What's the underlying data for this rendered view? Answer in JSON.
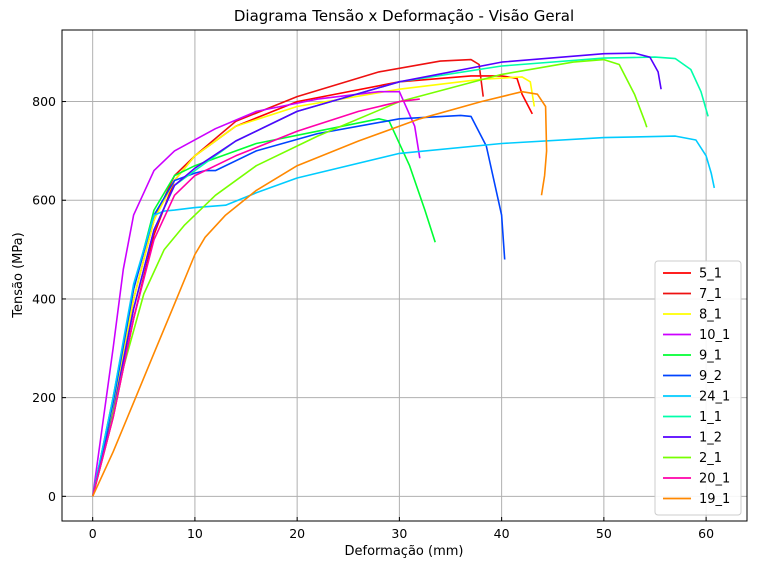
{
  "chart_data": {
    "type": "line",
    "title": "Diagrama Tensão x Deformação - Visão Geral",
    "xlabel": "Deformação (mm)",
    "ylabel": "Tensão (MPa)",
    "xlim": [
      -3,
      64
    ],
    "ylim": [
      -50,
      945
    ],
    "xticks": [
      0,
      10,
      20,
      30,
      40,
      50,
      60
    ],
    "yticks": [
      0,
      200,
      400,
      600,
      800
    ],
    "grid": true,
    "legend_position": "lower-right",
    "series": [
      {
        "name": "5_1",
        "color": "#ff0000",
        "points": [
          [
            0,
            0
          ],
          [
            2,
            160
          ],
          [
            4,
            360
          ],
          [
            6,
            530
          ],
          [
            8,
            640
          ],
          [
            10,
            690
          ],
          [
            14,
            750
          ],
          [
            20,
            800
          ],
          [
            30,
            840
          ],
          [
            37,
            852
          ],
          [
            40,
            852
          ],
          [
            41.5,
            847
          ],
          [
            42,
            815
          ],
          [
            43,
            775
          ]
        ]
      },
      {
        "name": "7_1",
        "color": "#ee1010",
        "points": [
          [
            0,
            0
          ],
          [
            2,
            180
          ],
          [
            4,
            400
          ],
          [
            6,
            560
          ],
          [
            8,
            650
          ],
          [
            10,
            690
          ],
          [
            14,
            760
          ],
          [
            20,
            810
          ],
          [
            28,
            860
          ],
          [
            34,
            882
          ],
          [
            37,
            885
          ],
          [
            37.8,
            875
          ],
          [
            38.2,
            810
          ]
        ]
      },
      {
        "name": "8_1",
        "color": "#ffff00",
        "points": [
          [
            0,
            0
          ],
          [
            2,
            180
          ],
          [
            4,
            400
          ],
          [
            6,
            560
          ],
          [
            8,
            640
          ],
          [
            10,
            690
          ],
          [
            14,
            750
          ],
          [
            20,
            790
          ],
          [
            30,
            825
          ],
          [
            38,
            845
          ],
          [
            42,
            850
          ],
          [
            42.8,
            840
          ],
          [
            43.2,
            790
          ]
        ]
      },
      {
        "name": "10_1",
        "color": "#cc00ff",
        "points": [
          [
            0,
            0
          ],
          [
            1,
            150
          ],
          [
            2,
            300
          ],
          [
            3,
            460
          ],
          [
            4,
            570
          ],
          [
            6,
            660
          ],
          [
            8,
            700
          ],
          [
            12,
            745
          ],
          [
            16,
            780
          ],
          [
            22,
            805
          ],
          [
            28,
            820
          ],
          [
            30,
            820
          ],
          [
            31.5,
            750
          ],
          [
            32,
            685
          ]
        ]
      },
      {
        "name": "9_1",
        "color": "#00ff33",
        "points": [
          [
            0,
            0
          ],
          [
            2,
            200
          ],
          [
            4,
            420
          ],
          [
            6,
            580
          ],
          [
            8,
            650
          ],
          [
            10,
            670
          ],
          [
            12,
            685
          ],
          [
            16,
            715
          ],
          [
            22,
            740
          ],
          [
            28,
            765
          ],
          [
            29,
            760
          ],
          [
            31,
            670
          ],
          [
            32.5,
            580
          ],
          [
            33.5,
            515
          ]
        ]
      },
      {
        "name": "9_2",
        "color": "#0044ff",
        "points": [
          [
            0,
            0
          ],
          [
            2,
            190
          ],
          [
            4,
            420
          ],
          [
            6,
            570
          ],
          [
            8,
            640
          ],
          [
            10,
            655
          ],
          [
            11,
            660
          ],
          [
            12,
            660
          ],
          [
            16,
            700
          ],
          [
            22,
            735
          ],
          [
            30,
            765
          ],
          [
            36,
            772
          ],
          [
            37,
            770
          ],
          [
            38.5,
            710
          ],
          [
            40,
            570
          ],
          [
            40.3,
            480
          ]
        ]
      },
      {
        "name": "24_1",
        "color": "#00ccff",
        "points": [
          [
            0,
            0
          ],
          [
            2,
            200
          ],
          [
            4,
            430
          ],
          [
            6,
            570
          ],
          [
            7,
            578
          ],
          [
            8,
            580
          ],
          [
            10,
            585
          ],
          [
            13,
            590
          ],
          [
            16,
            615
          ],
          [
            20,
            645
          ],
          [
            30,
            695
          ],
          [
            40,
            715
          ],
          [
            50,
            727
          ],
          [
            57,
            730
          ],
          [
            59,
            722
          ],
          [
            60,
            690
          ],
          [
            60.5,
            655
          ],
          [
            60.8,
            625
          ]
        ]
      },
      {
        "name": "1_1",
        "color": "#00ffaa",
        "points": [
          [
            0,
            0
          ],
          [
            2,
            170
          ],
          [
            4,
            380
          ],
          [
            6,
            540
          ],
          [
            8,
            630
          ],
          [
            10,
            660
          ],
          [
            14,
            720
          ],
          [
            20,
            780
          ],
          [
            30,
            840
          ],
          [
            40,
            872
          ],
          [
            50,
            888
          ],
          [
            55,
            890
          ],
          [
            57,
            887
          ],
          [
            58.5,
            865
          ],
          [
            59.5,
            820
          ],
          [
            60.2,
            770
          ]
        ]
      },
      {
        "name": "1_2",
        "color": "#5500ff",
        "points": [
          [
            0,
            0
          ],
          [
            2,
            170
          ],
          [
            4,
            380
          ],
          [
            6,
            540
          ],
          [
            8,
            630
          ],
          [
            10,
            665
          ],
          [
            14,
            720
          ],
          [
            20,
            780
          ],
          [
            30,
            840
          ],
          [
            40,
            880
          ],
          [
            50,
            897
          ],
          [
            53,
            898
          ],
          [
            54.5,
            890
          ],
          [
            55.3,
            860
          ],
          [
            55.6,
            825
          ]
        ]
      },
      {
        "name": "2_1",
        "color": "#77ff00",
        "points": [
          [
            0,
            0
          ],
          [
            1.5,
            120
          ],
          [
            3,
            260
          ],
          [
            5,
            410
          ],
          [
            7,
            500
          ],
          [
            9,
            550
          ],
          [
            12,
            610
          ],
          [
            16,
            670
          ],
          [
            22,
            730
          ],
          [
            30,
            800
          ],
          [
            40,
            855
          ],
          [
            47,
            880
          ],
          [
            50,
            885
          ],
          [
            51.5,
            875
          ],
          [
            53,
            815
          ],
          [
            54,
            760
          ],
          [
            54.2,
            748
          ]
        ]
      },
      {
        "name": "20_1",
        "color": "#ff00aa",
        "points": [
          [
            0,
            0
          ],
          [
            2,
            160
          ],
          [
            4,
            360
          ],
          [
            6,
            520
          ],
          [
            8,
            610
          ],
          [
            10,
            650
          ],
          [
            14,
            690
          ],
          [
            20,
            740
          ],
          [
            26,
            780
          ],
          [
            30,
            800
          ],
          [
            32,
            805
          ]
        ]
      },
      {
        "name": "19_1",
        "color": "#ff8800",
        "points": [
          [
            0,
            0
          ],
          [
            2,
            90
          ],
          [
            4,
            190
          ],
          [
            6,
            290
          ],
          [
            8,
            390
          ],
          [
            10,
            490
          ],
          [
            11,
            525
          ],
          [
            13,
            570
          ],
          [
            16,
            620
          ],
          [
            20,
            670
          ],
          [
            26,
            720
          ],
          [
            32,
            765
          ],
          [
            38,
            800
          ],
          [
            42,
            820
          ],
          [
            43.5,
            815
          ],
          [
            44.3,
            790
          ],
          [
            44.4,
            700
          ],
          [
            44.2,
            650
          ],
          [
            43.9,
            610
          ]
        ]
      }
    ]
  }
}
